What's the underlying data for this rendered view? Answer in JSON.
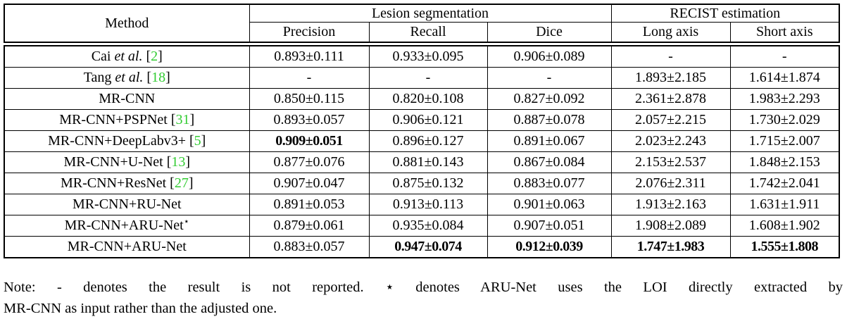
{
  "colors": {
    "citation_green": "#33cc33",
    "text_black": "#000000",
    "background": "#ffffff"
  },
  "table": {
    "header": {
      "method": "Method",
      "groups": [
        {
          "label": "Lesion segmentation",
          "span": 3
        },
        {
          "label": "RECIST estimation",
          "span": 2
        }
      ],
      "subcols": [
        "Precision",
        "Recall",
        "Dice",
        "Long axis",
        "Short axis"
      ]
    },
    "symbols": {
      "etal": "et al.",
      "bracket_open": "[",
      "bracket_close": "]",
      "star": "⋆",
      "dash": "-"
    },
    "rows": [
      {
        "method": {
          "name": "Cai",
          "etal": true,
          "cite": "2",
          "star": false
        },
        "cells": [
          {
            "v": "0.893±0.111"
          },
          {
            "v": "0.933±0.095"
          },
          {
            "v": "0.906±0.089"
          },
          {
            "v": "-"
          },
          {
            "v": "-"
          }
        ]
      },
      {
        "method": {
          "name": "Tang",
          "etal": true,
          "cite": "18",
          "star": false
        },
        "cells": [
          {
            "v": "-"
          },
          {
            "v": "-"
          },
          {
            "v": "-"
          },
          {
            "v": "1.893±2.185"
          },
          {
            "v": "1.614±1.874"
          }
        ]
      },
      {
        "method": {
          "name": "MR-CNN",
          "etal": false,
          "cite": null,
          "star": false
        },
        "cells": [
          {
            "v": "0.850±0.115"
          },
          {
            "v": "0.820±0.108"
          },
          {
            "v": "0.827±0.092"
          },
          {
            "v": "2.361±2.878"
          },
          {
            "v": "1.983±2.293"
          }
        ]
      },
      {
        "method": {
          "name": "MR-CNN+PSPNet",
          "etal": false,
          "cite": "31",
          "star": false
        },
        "cells": [
          {
            "v": "0.893±0.057"
          },
          {
            "v": "0.906±0.121"
          },
          {
            "v": "0.887±0.078"
          },
          {
            "v": "2.057±2.215"
          },
          {
            "v": "1.730±2.029"
          }
        ]
      },
      {
        "method": {
          "name": "MR-CNN+DeepLabv3+",
          "etal": false,
          "cite": "5",
          "star": false
        },
        "cells": [
          {
            "v": "0.909±0.051",
            "b": true
          },
          {
            "v": "0.896±0.127"
          },
          {
            "v": "0.891±0.067"
          },
          {
            "v": "2.023±2.243"
          },
          {
            "v": "1.715±2.007"
          }
        ]
      },
      {
        "method": {
          "name": "MR-CNN+U-Net",
          "etal": false,
          "cite": "13",
          "star": false
        },
        "cells": [
          {
            "v": "0.877±0.076"
          },
          {
            "v": "0.881±0.143"
          },
          {
            "v": "0.867±0.084"
          },
          {
            "v": "2.153±2.537"
          },
          {
            "v": "1.848±2.153"
          }
        ]
      },
      {
        "method": {
          "name": "MR-CNN+ResNet",
          "etal": false,
          "cite": "27",
          "star": false
        },
        "cells": [
          {
            "v": "0.907±0.047"
          },
          {
            "v": "0.875±0.132"
          },
          {
            "v": "0.883±0.077"
          },
          {
            "v": "2.076±2.311"
          },
          {
            "v": "1.742±2.041"
          }
        ]
      },
      {
        "method": {
          "name": "MR-CNN+RU-Net",
          "etal": false,
          "cite": null,
          "star": false
        },
        "cells": [
          {
            "v": "0.891±0.053"
          },
          {
            "v": "0.913±0.113"
          },
          {
            "v": "0.901±0.063"
          },
          {
            "v": "1.913±2.163"
          },
          {
            "v": "1.631±1.911"
          }
        ]
      },
      {
        "method": {
          "name": "MR-CNN+ARU-Net",
          "etal": false,
          "cite": null,
          "star": true
        },
        "cells": [
          {
            "v": "0.879±0.061"
          },
          {
            "v": "0.935±0.084"
          },
          {
            "v": "0.907±0.051"
          },
          {
            "v": "1.908±2.089"
          },
          {
            "v": "1.608±1.902"
          }
        ]
      },
      {
        "method": {
          "name": "MR-CNN+ARU-Net",
          "etal": false,
          "cite": null,
          "star": false
        },
        "cells": [
          {
            "v": "0.883±0.057"
          },
          {
            "v": "0.947±0.074",
            "b": true
          },
          {
            "v": "0.912±0.039",
            "b": true
          },
          {
            "v": "1.747±1.983",
            "b": true
          },
          {
            "v": "1.555±1.808",
            "b": true
          }
        ]
      }
    ]
  },
  "footnote": {
    "line1": "Note: - denotes the result is not reported. ⋆ denotes ARU-Net uses the LOI directly extracted by",
    "line2": "MR-CNN as input rather than the adjusted one."
  }
}
